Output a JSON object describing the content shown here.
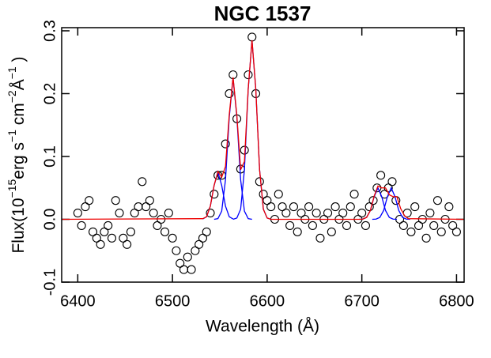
{
  "chart_data": {
    "type": "scatter",
    "title": "NGC 1537",
    "xlabel": "Wavelength (Å)",
    "ylabel_parts": [
      {
        "text": "Flux(10"
      },
      {
        "text": "−15",
        "sup": true
      },
      {
        "text": "erg s"
      },
      {
        "text": "−1",
        "sup": true
      },
      {
        "text": " cm"
      },
      {
        "text": "−2",
        "sup": true
      },
      {
        "text": "Å"
      },
      {
        "text": "−1",
        "sup": true
      },
      {
        "text": " )"
      }
    ],
    "xlim": [
      6383,
      6808
    ],
    "ylim": [
      -0.1,
      0.305
    ],
    "xticks": [
      6400,
      6500,
      6600,
      6700,
      6800
    ],
    "yticks": [
      -0.1,
      {
        "value": 0,
        "label": "0.0"
      },
      0.1,
      0.2,
      0.3
    ],
    "series": [
      {
        "mode": "markers",
        "color": "#000000",
        "x": [
          6400,
          6404,
          6408,
          6412,
          6416,
          6420,
          6424,
          6428,
          6432,
          6436,
          6440,
          6444,
          6448,
          6452,
          6456,
          6460,
          6464,
          6468,
          6472,
          6476,
          6480,
          6484,
          6488,
          6492,
          6496,
          6500,
          6504,
          6508,
          6512,
          6516,
          6520,
          6524,
          6528,
          6532,
          6536,
          6540,
          6544,
          6548,
          6552,
          6556,
          6560,
          6564,
          6568,
          6572,
          6576,
          6580,
          6584,
          6588,
          6592,
          6596,
          6600,
          6604,
          6608,
          6612,
          6616,
          6620,
          6624,
          6628,
          6632,
          6636,
          6640,
          6644,
          6648,
          6652,
          6656,
          6660,
          6664,
          6668,
          6672,
          6676,
          6680,
          6684,
          6688,
          6692,
          6696,
          6700,
          6704,
          6708,
          6712,
          6716,
          6720,
          6724,
          6728,
          6732,
          6736,
          6740,
          6744,
          6748,
          6752,
          6756,
          6760,
          6764,
          6768,
          6772,
          6776,
          6780,
          6784,
          6788,
          6792,
          6796,
          6800
        ],
        "values": [
          0.01,
          -0.01,
          0.02,
          0.03,
          -0.02,
          -0.03,
          -0.04,
          -0.02,
          -0.01,
          -0.03,
          0.03,
          0.01,
          -0.03,
          -0.04,
          -0.02,
          0.01,
          0.02,
          0.06,
          0.02,
          0.03,
          0.01,
          -0.01,
          0.0,
          -0.02,
          0.01,
          -0.03,
          -0.05,
          -0.07,
          -0.08,
          -0.06,
          -0.08,
          -0.05,
          -0.04,
          -0.03,
          -0.02,
          0.01,
          0.04,
          0.07,
          0.07,
          0.12,
          0.2,
          0.23,
          0.16,
          0.08,
          0.11,
          0.23,
          0.29,
          0.2,
          0.06,
          0.04,
          0.03,
          0.02,
          0.0,
          0.04,
          0.02,
          0.01,
          -0.01,
          0.02,
          -0.02,
          0.01,
          0.0,
          0.02,
          -0.01,
          0.01,
          -0.03,
          0.0,
          0.01,
          -0.02,
          0.02,
          0.0,
          0.01,
          -0.01,
          0.02,
          0.04,
          0.0,
          0.01,
          -0.01,
          0.02,
          0.03,
          0.05,
          0.07,
          0.04,
          0.05,
          0.06,
          0.03,
          0.0,
          -0.01,
          0.01,
          -0.02,
          0.02,
          -0.01,
          0.0,
          -0.03,
          0.01,
          -0.01,
          0.03,
          -0.02,
          0.0,
          0.02,
          -0.01,
          -0.02
        ]
      },
      {
        "mode": "lines",
        "color": "#0000ff",
        "x": [
          6532,
          6536,
          6540,
          6544,
          6548,
          6552,
          6556,
          6560,
          6564
        ],
        "values": [
          0.0005,
          0.004,
          0.021,
          0.054,
          0.075,
          0.054,
          0.021,
          0.004,
          0.0005
        ]
      },
      {
        "mode": "lines",
        "color": "#0000ff",
        "x": [
          6544,
          6548,
          6552,
          6556,
          6560,
          6564,
          6568,
          6572,
          6576,
          6580,
          6584
        ],
        "values": [
          0,
          0.001,
          0.013,
          0.063,
          0.163,
          0.225,
          0.163,
          0.063,
          0.013,
          0.001,
          0
        ]
      },
      {
        "mode": "lines",
        "color": "#0000ff",
        "x": [
          6564,
          6568,
          6572,
          6576,
          6580,
          6584,
          6588,
          6592,
          6596,
          6600,
          6604
        ],
        "values": [
          0,
          0.002,
          0.016,
          0.079,
          0.207,
          0.285,
          0.207,
          0.079,
          0.016,
          0.002,
          0
        ]
      },
      {
        "mode": "lines",
        "color": "#0000ff",
        "x": [
          6697,
          6701,
          6705,
          6709,
          6713,
          6717,
          6721,
          6725,
          6729,
          6733,
          6737
        ],
        "values": [
          0,
          0.0003,
          0.003,
          0.014,
          0.036,
          0.05,
          0.036,
          0.014,
          0.003,
          0.0003,
          0
        ]
      },
      {
        "mode": "lines",
        "color": "#0000ff",
        "x": [
          6711,
          6715,
          6719,
          6723,
          6727,
          6731,
          6735,
          6739,
          6743,
          6747,
          6751
        ],
        "values": [
          0,
          0.0003,
          0.003,
          0.014,
          0.036,
          0.05,
          0.036,
          0.014,
          0.003,
          0.0003,
          0
        ]
      },
      {
        "mode": "lines",
        "color": "#ee0000",
        "x": [
          6383,
          6532,
          6536,
          6540,
          6544,
          6548,
          6552,
          6556,
          6560,
          6564,
          6568,
          6572,
          6576,
          6580,
          6584,
          6588,
          6592,
          6596,
          6600,
          6604,
          6697,
          6701,
          6705,
          6709,
          6713,
          6717,
          6721,
          6725,
          6729,
          6733,
          6737,
          6741,
          6745,
          6749,
          6808
        ],
        "values": [
          0,
          0.001,
          0.004,
          0.021,
          0.054,
          0.076,
          0.067,
          0.084,
          0.167,
          0.226,
          0.165,
          0.079,
          0.092,
          0.208,
          0.285,
          0.207,
          0.079,
          0.016,
          0.002,
          0,
          0,
          0.0003,
          0.003,
          0.014,
          0.037,
          0.053,
          0.05,
          0.05,
          0.039,
          0.036,
          0.036,
          0.017,
          0.006,
          0.001,
          0
        ]
      }
    ]
  }
}
